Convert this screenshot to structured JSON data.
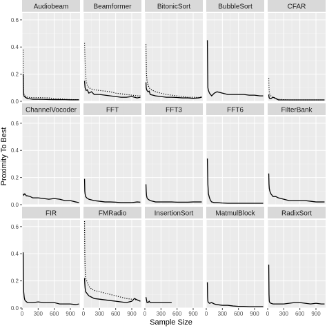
{
  "chart_data": {
    "type": "line",
    "xlabel": "Sample Size",
    "ylabel": "Proximity To Best",
    "xlim": [
      0,
      1080
    ],
    "ylim": [
      0,
      0.65
    ],
    "x_ticks": [
      "0",
      "300",
      "600",
      "900"
    ],
    "x_tick_values": [
      0,
      300,
      600,
      900
    ],
    "y_ticks": [
      "0.0",
      "0.2",
      "0.4",
      "0.6"
    ],
    "y_tick_values": [
      0,
      0.2,
      0.4,
      0.6
    ],
    "grid": true,
    "panels": [
      {
        "name": "Audiobeam",
        "series": [
          {
            "style": "solid",
            "x": [
              20,
              25,
              30,
              40,
              60,
              100,
              150,
              200,
              300,
              400,
              500,
              600,
              700,
              800,
              900,
              1000,
              1060
            ],
            "y": [
              0.2,
              0.1,
              0.05,
              0.035,
              0.03,
              0.02,
              0.018,
              0.015,
              0.015,
              0.014,
              0.013,
              0.012,
              0.012,
              0.012,
              0.011,
              0.011,
              0.011
            ]
          },
          {
            "style": "dotted",
            "x": [
              20,
              25,
              30,
              40,
              60,
              100,
              150,
              200,
              300,
              400,
              500,
              600,
              700,
              800,
              900,
              1000,
              1060
            ],
            "y": [
              0.38,
              0.15,
              0.07,
              0.05,
              0.04,
              0.03,
              0.028,
              0.027,
              0.027,
              0.026,
              0.025,
              0.02,
              0.018,
              0.015,
              0.013,
              0.012,
              0.012
            ]
          }
        ]
      },
      {
        "name": "Beamformer",
        "series": [
          {
            "style": "solid",
            "x": [
              20,
              30,
              40,
              50,
              70,
              100,
              150,
              200,
              300,
              400,
              500,
              600,
              700,
              800,
              900,
              1000,
              1060
            ],
            "y": [
              0.15,
              0.1,
              0.09,
              0.08,
              0.085,
              0.06,
              0.07,
              0.05,
              0.05,
              0.045,
              0.04,
              0.035,
              0.03,
              0.03,
              0.035,
              0.025,
              0.03
            ]
          },
          {
            "style": "dotted",
            "x": [
              20,
              30,
              40,
              50,
              70,
              100,
              150,
              200,
              300,
              400,
              500,
              600,
              700,
              800,
              900,
              1000,
              1060
            ],
            "y": [
              0.43,
              0.3,
              0.2,
              0.15,
              0.12,
              0.1,
              0.09,
              0.085,
              0.08,
              0.075,
              0.07,
              0.06,
              0.055,
              0.05,
              0.045,
              0.04,
              0.04
            ]
          }
        ]
      },
      {
        "name": "BitonicSort",
        "series": [
          {
            "style": "solid",
            "x": [
              20,
              25,
              30,
              40,
              60,
              80,
              100,
              150,
              200,
              300,
              400,
              500,
              600,
              700,
              800,
              900,
              1000,
              1060
            ],
            "y": [
              0.14,
              0.1,
              0.09,
              0.08,
              0.07,
              0.075,
              0.05,
              0.045,
              0.04,
              0.035,
              0.03,
              0.03,
              0.028,
              0.025,
              0.025,
              0.022,
              0.025,
              0.03
            ]
          },
          {
            "style": "dotted",
            "x": [
              20,
              25,
              30,
              40,
              60,
              80,
              100,
              150,
              200,
              300,
              400,
              500,
              600,
              700,
              800,
              900,
              1000,
              1060
            ],
            "y": [
              0.42,
              0.3,
              0.2,
              0.15,
              0.12,
              0.1,
              0.09,
              0.08,
              0.07,
              0.06,
              0.05,
              0.045,
              0.04,
              0.035,
              0.03,
              0.03,
              0.028,
              0.035
            ]
          }
        ]
      },
      {
        "name": "BubbleSort",
        "series": [
          {
            "style": "solid",
            "x": [
              20,
              30,
              40,
              60,
              100,
              150,
              200,
              300,
              400,
              500,
              600,
              700,
              800,
              900,
              1000,
              1060
            ],
            "y": [
              0.45,
              0.1,
              0.08,
              0.06,
              0.04,
              0.06,
              0.07,
              0.06,
              0.05,
              0.05,
              0.05,
              0.05,
              0.045,
              0.045,
              0.04,
              0.04
            ]
          }
        ]
      },
      {
        "name": "CFAR",
        "series": [
          {
            "style": "solid",
            "x": [
              20,
              25,
              30,
              40,
              60,
              80,
              100,
              150,
              200,
              300,
              400,
              500,
              600,
              700,
              800,
              900,
              1000,
              1060
            ],
            "y": [
              0.05,
              0.03,
              0.025,
              0.02,
              0.02,
              0.025,
              0.03,
              0.02,
              0.01,
              0.01,
              0.01,
              0.01,
              0.01,
              0.01,
              0.01,
              0.01,
              0.01,
              0.01
            ]
          },
          {
            "style": "dotted",
            "x": [
              20,
              25,
              30,
              40,
              60,
              80,
              100,
              150,
              200,
              300,
              400,
              500,
              600,
              700,
              800,
              900,
              1000,
              1060
            ],
            "y": [
              0.17,
              0.1,
              0.07,
              0.05,
              0.04,
              0.035,
              0.03,
              0.025,
              0.015,
              0.012,
              0.01,
              0.01,
              0.01,
              0.01,
              0.01,
              0.01,
              0.01,
              0.01
            ]
          }
        ]
      },
      {
        "name": "ChannelVocoder",
        "series": [
          {
            "style": "solid",
            "x": [
              20,
              30,
              50,
              80,
              100,
              150,
              200,
              300,
              400,
              500,
              600,
              700,
              800,
              900,
              1000,
              1060
            ],
            "y": [
              0.08,
              0.07,
              0.08,
              0.065,
              0.065,
              0.06,
              0.05,
              0.05,
              0.045,
              0.04,
              0.045,
              0.04,
              0.03,
              0.03,
              0.02,
              0.015
            ]
          }
        ]
      },
      {
        "name": "FFT",
        "series": [
          {
            "style": "solid",
            "x": [
              20,
              25,
              30,
              40,
              60,
              100,
              150,
              200,
              300,
              400,
              500,
              600,
              700,
              800,
              900,
              1000,
              1060
            ],
            "y": [
              0.19,
              0.1,
              0.08,
              0.06,
              0.05,
              0.04,
              0.035,
              0.03,
              0.025,
              0.02,
              0.02,
              0.018,
              0.015,
              0.015,
              0.015,
              0.02,
              0.018
            ]
          }
        ]
      },
      {
        "name": "FFT3",
        "series": [
          {
            "style": "solid",
            "x": [
              20,
              25,
              30,
              40,
              60,
              100,
              150,
              200,
              300,
              400,
              500,
              600,
              700,
              800,
              900,
              1000,
              1060
            ],
            "y": [
              0.15,
              0.1,
              0.07,
              0.05,
              0.04,
              0.03,
              0.025,
              0.02,
              0.02,
              0.02,
              0.02,
              0.018,
              0.018,
              0.018,
              0.02,
              0.02,
              0.02
            ]
          }
        ]
      },
      {
        "name": "FFT6",
        "series": [
          {
            "style": "solid",
            "x": [
              20,
              25,
              30,
              40,
              60,
              80,
              100,
              150,
              200,
              300,
              400,
              500,
              600,
              700,
              800,
              900,
              1000,
              1060
            ],
            "y": [
              0.34,
              0.25,
              0.15,
              0.08,
              0.05,
              0.03,
              0.02,
              0.015,
              0.015,
              0.012,
              0.01,
              0.01,
              0.01,
              0.01,
              0.01,
              0.01,
              0.01,
              0.01
            ]
          }
        ]
      },
      {
        "name": "FilterBank",
        "series": [
          {
            "style": "solid",
            "x": [
              20,
              25,
              30,
              40,
              60,
              80,
              100,
              150,
              200,
              300,
              400,
              500,
              600,
              700,
              800,
              900,
              1000,
              1060
            ],
            "y": [
              0.23,
              0.15,
              0.12,
              0.1,
              0.08,
              0.07,
              0.06,
              0.06,
              0.05,
              0.04,
              0.03,
              0.03,
              0.03,
              0.03,
              0.025,
              0.02,
              0.02,
              0.02
            ]
          }
        ]
      },
      {
        "name": "FIR",
        "series": [
          {
            "style": "solid",
            "x": [
              20,
              25,
              30,
              40,
              50,
              70,
              100,
              150,
              200,
              300,
              400,
              500,
              600,
              700,
              800,
              900,
              1000,
              1060
            ],
            "y": [
              0.41,
              0.25,
              0.12,
              0.08,
              0.06,
              0.05,
              0.04,
              0.04,
              0.04,
              0.045,
              0.04,
              0.04,
              0.04,
              0.03,
              0.03,
              0.03,
              0.025,
              0.03
            ]
          }
        ]
      },
      {
        "name": "FMRadio",
        "series": [
          {
            "style": "solid",
            "x": [
              20,
              25,
              30,
              40,
              60,
              80,
              100,
              150,
              200,
              300,
              400,
              500,
              600,
              700,
              800,
              900,
              950,
              1000,
              1060
            ],
            "y": [
              0.22,
              0.18,
              0.15,
              0.12,
              0.11,
              0.1,
              0.09,
              0.08,
              0.07,
              0.065,
              0.06,
              0.055,
              0.05,
              0.045,
              0.04,
              0.05,
              0.07,
              0.06,
              0.05
            ]
          },
          {
            "style": "dotted",
            "x": [
              20,
              25,
              30,
              40,
              60,
              80,
              100,
              150,
              200,
              300,
              400,
              500,
              600,
              700,
              800,
              900,
              1000,
              1060
            ],
            "y": [
              0.64,
              0.4,
              0.3,
              0.22,
              0.2,
              0.18,
              0.16,
              0.14,
              0.13,
              0.12,
              0.11,
              0.1,
              0.09,
              0.08,
              0.07,
              0.065,
              0.06,
              0.05
            ]
          }
        ]
      },
      {
        "name": "InsertionSort",
        "series": [
          {
            "style": "solid",
            "x": [
              20,
              30,
              40,
              60,
              80,
              100,
              150,
              200,
              300,
              400,
              500
            ],
            "y": [
              0.08,
              0.06,
              0.04,
              0.04,
              0.05,
              0.04,
              0.04,
              0.04,
              0.04,
              0.04,
              0.04
            ]
          }
        ]
      },
      {
        "name": "MatmulBlock",
        "series": [
          {
            "style": "solid",
            "x": [
              20,
              25,
              30,
              40,
              60,
              100,
              150,
              200,
              300,
              400,
              500,
              600,
              700,
              800,
              900,
              1000,
              1060
            ],
            "y": [
              0.19,
              0.08,
              0.05,
              0.04,
              0.035,
              0.04,
              0.03,
              0.025,
              0.02,
              0.02,
              0.015,
              0.012,
              0.012,
              0.01,
              0.01,
              0.01,
              0.01
            ]
          }
        ]
      },
      {
        "name": "RadixSort",
        "series": [
          {
            "style": "solid",
            "x": [
              20,
              25,
              30,
              40,
              60,
              100,
              150,
              200,
              300,
              400,
              500,
              600,
              700,
              800,
              900,
              1000,
              1060
            ],
            "y": [
              0.32,
              0.1,
              0.05,
              0.04,
              0.035,
              0.03,
              0.03,
              0.03,
              0.03,
              0.035,
              0.04,
              0.04,
              0.035,
              0.03,
              0.035,
              0.03,
              0.03
            ]
          }
        ]
      }
    ]
  }
}
